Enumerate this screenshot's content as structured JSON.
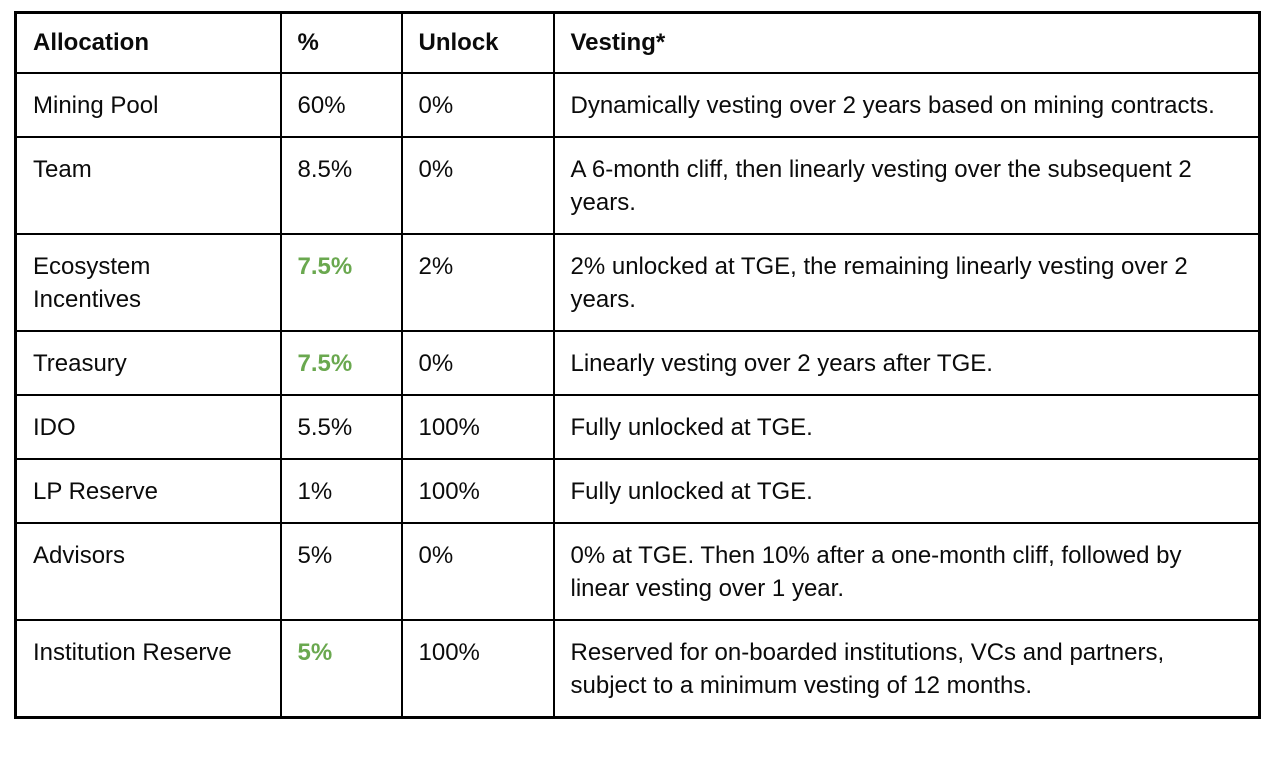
{
  "colors": {
    "highlight_green": "#6aa84f",
    "border_black": "#000000",
    "text_black": "#0b0b0b",
    "background": "#ffffff"
  },
  "table": {
    "headers": [
      {
        "label": "Allocation"
      },
      {
        "label": "%"
      },
      {
        "label": "Unlock"
      },
      {
        "label": "Vesting*"
      }
    ],
    "rows": [
      {
        "allocation": "Mining Pool",
        "percent": "60%",
        "percent_highlight": false,
        "unlock": "0%",
        "vesting": "Dynamically vesting over 2 years based on mining contracts."
      },
      {
        "allocation": "Team",
        "percent": "8.5%",
        "percent_highlight": false,
        "unlock": "0%",
        "vesting": "A 6-month cliff, then linearly vesting over the subsequent 2 years."
      },
      {
        "allocation": "Ecosystem Incentives",
        "percent": "7.5%",
        "percent_highlight": true,
        "unlock": "2%",
        "vesting": "2% unlocked at TGE, the remaining linearly vesting over 2 years."
      },
      {
        "allocation": "Treasury",
        "percent": "7.5%",
        "percent_highlight": true,
        "unlock": "0%",
        "vesting": "Linearly vesting over 2 years after TGE."
      },
      {
        "allocation": "IDO",
        "percent": "5.5%",
        "percent_highlight": false,
        "unlock": "100%",
        "vesting": "Fully unlocked at TGE."
      },
      {
        "allocation": "LP Reserve",
        "percent": "1%",
        "percent_highlight": false,
        "unlock": "100%",
        "vesting": "Fully unlocked at TGE."
      },
      {
        "allocation": "Advisors",
        "percent": "5%",
        "percent_highlight": false,
        "unlock": "0%",
        "vesting": "0% at TGE. Then 10% after a one-month cliff, followed by linear vesting over 1 year."
      },
      {
        "allocation": "Institution Reserve",
        "percent": "5%",
        "percent_highlight": true,
        "unlock": "100%",
        "vesting": "Reserved for on-boarded institutions, VCs and partners, subject to a minimum vesting of 12 months."
      }
    ]
  }
}
